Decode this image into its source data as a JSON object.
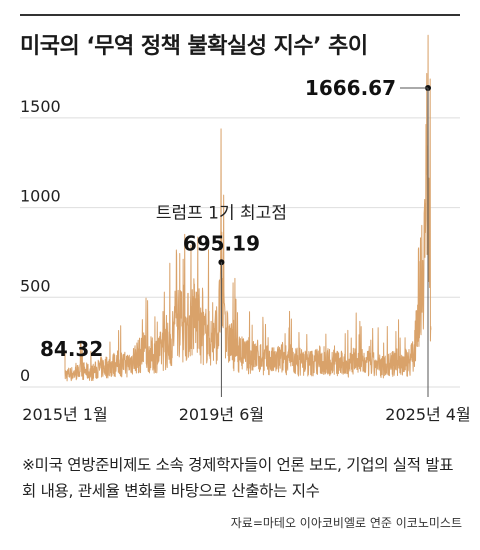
{
  "title": "미국의 ‘무역 정책 불확실성 지수’ 추이",
  "note": "※미국 연방준비제도 소속 경제학자들이 언론 보도, 기업의 실적 발표회 내용, 관세율 변화를 바탕으로 산출하는 지수",
  "source": "자료=마테오 이아코비엘로 연준 이코노미스트",
  "colors": {
    "line": "#d9a26a",
    "grid": "#dedede",
    "text": "#222222"
  },
  "chart_data": {
    "type": "line",
    "y_ticks": [
      "1500",
      "1000",
      "500",
      "0"
    ],
    "x_ticks": [
      "2015년 1월",
      "2019년 6월",
      "2025년 4월"
    ],
    "ylim": [
      0,
      1700
    ],
    "grid": true,
    "annotations": [
      {
        "date": "2015-01",
        "value": 84.32,
        "label": "84.32"
      },
      {
        "date": "2019-06",
        "value": 695.19,
        "label": "695.19",
        "caption": "트럼프 1기 최고점"
      },
      {
        "date": "2025-04",
        "value": 1666.67,
        "label": "1666.67"
      }
    ],
    "series": [
      {
        "x": [
          "2015-01",
          "2015-04",
          "2015-07",
          "2015-10",
          "2016-01",
          "2016-04",
          "2016-07",
          "2016-10",
          "2017-01",
          "2017-04",
          "2017-07",
          "2017-10",
          "2018-01",
          "2018-03",
          "2018-05",
          "2018-07",
          "2018-09",
          "2018-11",
          "2019-01",
          "2019-03",
          "2019-05",
          "2019-06",
          "2019-08",
          "2019-10",
          "2019-12",
          "2020-03",
          "2020-06",
          "2020-09",
          "2020-12",
          "2021-03",
          "2021-06",
          "2021-09",
          "2021-12",
          "2022-03",
          "2022-06",
          "2022-09",
          "2022-12",
          "2023-03",
          "2023-06",
          "2023-09",
          "2023-12",
          "2024-03",
          "2024-06",
          "2024-09",
          "2024-11",
          "2024-12",
          "2025-01",
          "2025-02",
          "2025-03",
          "2025-04",
          "2025-05"
        ],
        "values": [
          84.32,
          90,
          110,
          95,
          130,
          140,
          160,
          150,
          200,
          230,
          210,
          250,
          300,
          480,
          380,
          420,
          500,
          340,
          350,
          300,
          400,
          695.19,
          330,
          260,
          230,
          200,
          210,
          180,
          170,
          200,
          180,
          170,
          160,
          180,
          170,
          160,
          150,
          170,
          160,
          150,
          140,
          150,
          160,
          170,
          200,
          450,
          650,
          800,
          1050,
          1666.67,
          500
        ]
      }
    ]
  }
}
